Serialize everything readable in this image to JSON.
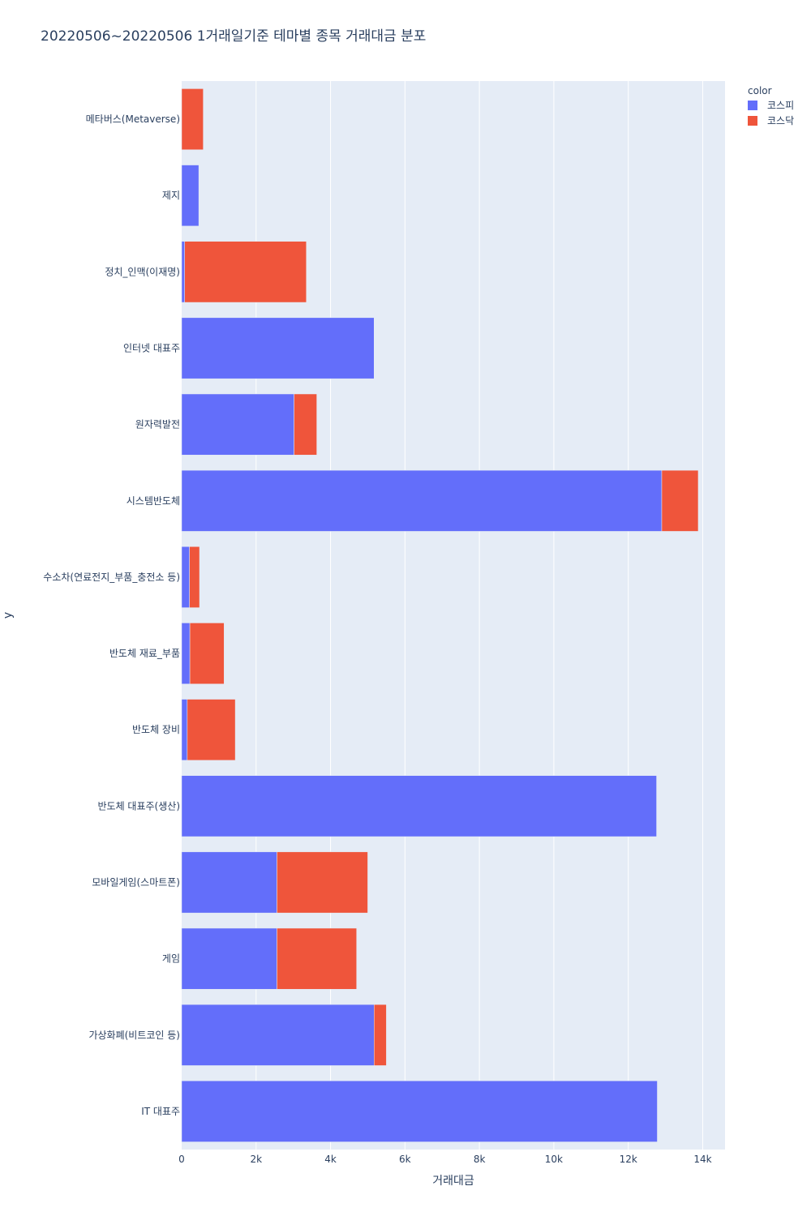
{
  "chart_data": {
    "type": "bar",
    "orientation": "horizontal",
    "barmode": "stack",
    "title": "20220506~20220506 1거래일기준 테마별 종목 거래대금 분포",
    "xlabel": "거래대금",
    "ylabel": "y",
    "xlim": [
      0,
      14600
    ],
    "x_ticks": [
      0,
      2000,
      4000,
      6000,
      8000,
      10000,
      12000,
      14000
    ],
    "x_tick_labels": [
      "0",
      "2k",
      "4k",
      "6k",
      "8k",
      "10k",
      "12k",
      "14k"
    ],
    "legend_title": "color",
    "legend_position": "top-right",
    "categories": [
      "메타버스(Metaverse)",
      "제지",
      "정치_인맥(이재명)",
      "인터넷 대표주",
      "원자력발전",
      "시스템반도체",
      "수소차(연료전지_부품_충전소 등)",
      "반도체 재료_부품",
      "반도체 장비",
      "반도체 대표주(생산)",
      "모바일게임(스마트폰)",
      "게임",
      "가상화폐(비트코인 등)",
      "IT 대표주"
    ],
    "series": [
      {
        "name": "코스피",
        "color": "#636efa",
        "values": [
          0,
          460,
          80,
          5170,
          3020,
          12900,
          210,
          220,
          150,
          12760,
          2560,
          2560,
          5170,
          12780
        ]
      },
      {
        "name": "코스닥",
        "color": "#ef553b",
        "values": [
          580,
          0,
          3270,
          0,
          610,
          980,
          270,
          920,
          1290,
          0,
          2440,
          2140,
          330,
          0
        ]
      }
    ]
  }
}
